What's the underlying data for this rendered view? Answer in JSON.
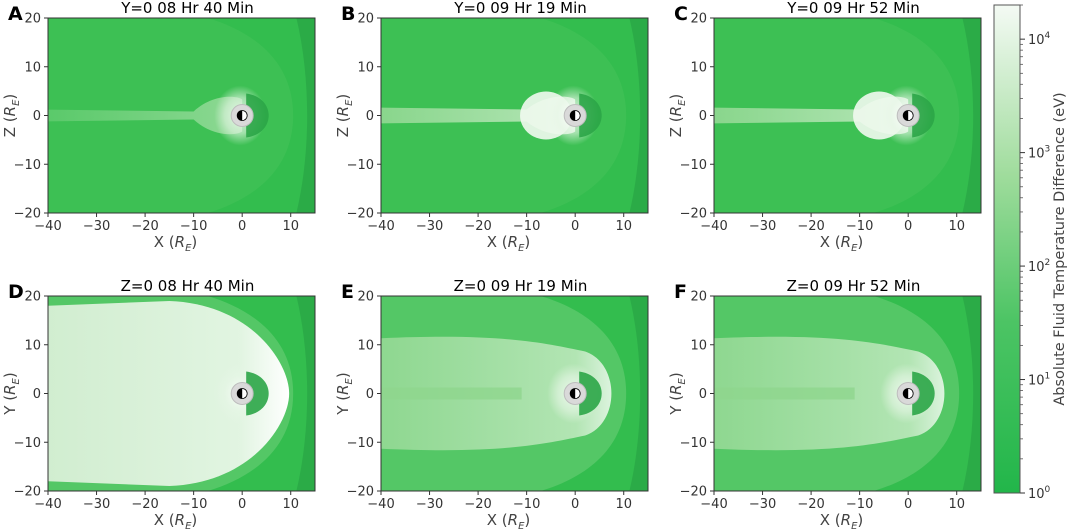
{
  "chart_data": {
    "type": "heatmap",
    "colorbar": {
      "label": "Absolute Fluid Temperature Difference (eV)",
      "scale": "log",
      "ticks": [
        {
          "base": "10",
          "exp": "0"
        },
        {
          "base": "10",
          "exp": "1"
        },
        {
          "base": "10",
          "exp": "2"
        },
        {
          "base": "10",
          "exp": "3"
        },
        {
          "base": "10",
          "exp": "4"
        }
      ],
      "range": [
        1,
        20000
      ],
      "color_low": "#22b64a",
      "color_high": "#f4faf4"
    },
    "x_ticks": [
      "−40",
      "−30",
      "−20",
      "−10",
      "0",
      "10"
    ],
    "y_ticks": [
      "20",
      "10",
      "0",
      "−10",
      "−20"
    ],
    "xlim": [
      -40,
      15
    ],
    "ylim": [
      -20,
      20
    ],
    "panels": [
      {
        "letter": "A",
        "title": "Y=0  08 Hr 40 Min",
        "xlabel": "X",
        "ylabel": "Z",
        "sub": "E",
        "tail_level": "low"
      },
      {
        "letter": "B",
        "title": "Y=0  09 Hr 19 Min",
        "xlabel": "X",
        "ylabel": "Z",
        "sub": "E",
        "tail_level": "medium"
      },
      {
        "letter": "C",
        "title": "Y=0  09 Hr 52 Min",
        "xlabel": "X",
        "ylabel": "Z",
        "sub": "E",
        "tail_level": "medium"
      },
      {
        "letter": "D",
        "title": "Z=0  08 Hr 40 Min",
        "xlabel": "X",
        "ylabel": "Y",
        "sub": "E",
        "tail_level": "high"
      },
      {
        "letter": "E",
        "title": "Z=0  09 Hr 19 Min",
        "xlabel": "X",
        "ylabel": "Y",
        "sub": "E",
        "tail_level": "medium-high"
      },
      {
        "letter": "F",
        "title": "Z=0  09 Hr 52 Min",
        "xlabel": "X",
        "ylabel": "Y",
        "sub": "E",
        "tail_level": "medium-high"
      }
    ]
  }
}
